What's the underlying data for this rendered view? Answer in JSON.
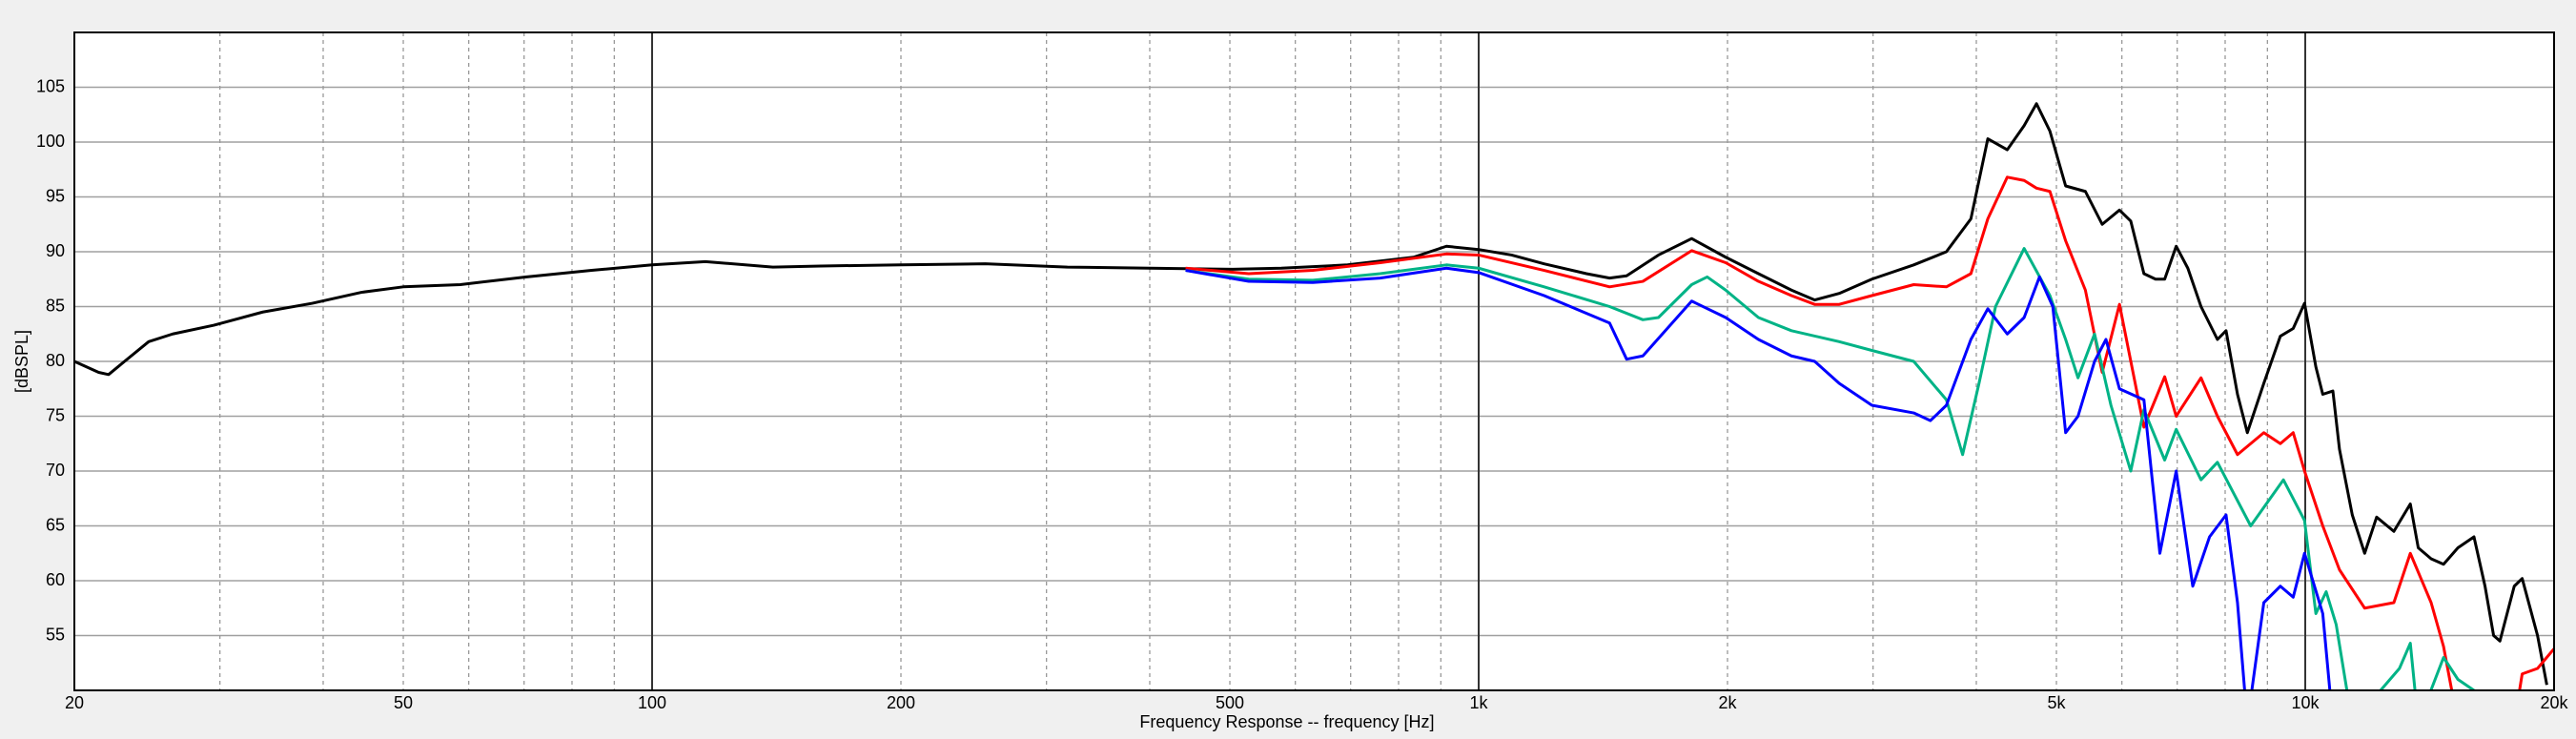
{
  "chart_data": {
    "type": "line",
    "xlabel": "Frequency Response -- frequency [Hz]",
    "ylabel": "[dBSPL]",
    "xlog": true,
    "grid": true,
    "xlim": [
      20,
      20000
    ],
    "ylim": [
      50,
      110
    ],
    "xticks": [
      20,
      50,
      100,
      200,
      500,
      {
        "value": 1000,
        "label": "1k"
      },
      {
        "value": 2000,
        "label": "2k"
      },
      {
        "value": 5000,
        "label": "5k"
      },
      {
        "value": 10000,
        "label": "10k"
      },
      {
        "value": 20000,
        "label": "20k"
      }
    ],
    "xminorticks": [
      30,
      40,
      60,
      70,
      80,
      90,
      300,
      400,
      600,
      700,
      800,
      900,
      3000,
      4000,
      6000,
      7000,
      8000,
      9000
    ],
    "yticks": [
      55,
      60,
      65,
      70,
      75,
      80,
      85,
      90,
      95,
      100,
      105
    ],
    "series": [
      {
        "color": "#000000",
        "x": [
          20,
          21.4,
          22,
          23,
          24.6,
          26.3,
          29.5,
          33.8,
          38.8,
          44.5,
          50,
          58.6,
          70.3,
          84.5,
          100,
          116,
          140,
          160,
          200,
          253,
          318,
          400,
          504,
          577,
          694,
          834,
          914,
          1000,
          1096,
          1200,
          1350,
          1440,
          1510,
          1650,
          1810,
          1990,
          2180,
          2390,
          2550,
          2730,
          2990,
          3360,
          3680,
          3940,
          4130,
          4360,
          4570,
          4730,
          4910,
          5130,
          5420,
          5680,
          5960,
          6150,
          6380,
          6590,
          6760,
          6980,
          7210,
          7480,
          7830,
          8020,
          8280,
          8510,
          8910,
          9330,
          9670,
          9980,
          10300,
          10500,
          10800,
          11000,
          11400,
          11800,
          12200,
          12800,
          13400,
          13700,
          14200,
          14700,
          15300,
          16000,
          16500,
          16900,
          17200,
          17900,
          18300,
          19100,
          19600
        ],
        "values": [
          80,
          79,
          78.8,
          80,
          81.8,
          82.5,
          83.3,
          84.5,
          85.3,
          86.3,
          86.8,
          87,
          87.7,
          88.3,
          88.8,
          89.1,
          88.6,
          88.7,
          88.8,
          88.9,
          88.6,
          88.5,
          88.4,
          88.5,
          88.8,
          89.5,
          90.5,
          90.2,
          89.7,
          88.9,
          88,
          87.6,
          87.8,
          89.7,
          91.2,
          89.5,
          88,
          86.5,
          85.6,
          86.2,
          87.5,
          88.8,
          90,
          93,
          100.3,
          99.3,
          101.5,
          103.5,
          101,
          96,
          95.5,
          92.5,
          93.8,
          92.8,
          88,
          87.5,
          87.5,
          90.5,
          88.5,
          85,
          82,
          82.8,
          77,
          73.5,
          78,
          82.3,
          83,
          85.3,
          79.5,
          77,
          77.3,
          72,
          66,
          62.5,
          65.8,
          64.5,
          67,
          63,
          62,
          61.5,
          63,
          64,
          59.5,
          55,
          54.5,
          59.5,
          60.2,
          55,
          50.5
        ]
      },
      {
        "color": "#ff0000",
        "x": [
          442,
          527,
          630,
          760,
          914,
          1000,
          1200,
          1440,
          1580,
          1810,
          1990,
          2180,
          2390,
          2550,
          2730,
          2990,
          3360,
          3680,
          3940,
          4130,
          4360,
          4570,
          4730,
          4910,
          5130,
          5420,
          5680,
          5960,
          6380,
          6760,
          6980,
          7480,
          7830,
          8280,
          8910,
          9330,
          9670,
          9980,
          10500,
          11000,
          11800,
          12800,
          13400,
          14200,
          14700,
          15300,
          17900,
          18300,
          19100,
          20000
        ],
        "values": [
          88.5,
          88,
          88.3,
          89,
          89.8,
          89.7,
          88.3,
          86.8,
          87.3,
          90.1,
          89,
          87.3,
          86,
          85.2,
          85.2,
          86,
          87,
          86.8,
          88,
          93,
          96.8,
          96.5,
          95.8,
          95.5,
          91,
          86.5,
          79,
          85.2,
          74,
          78.6,
          75,
          78.5,
          75,
          71.5,
          73.5,
          72.5,
          73.5,
          70,
          65,
          61,
          57.5,
          58,
          62.5,
          58,
          54,
          47,
          47,
          51.5,
          52,
          53.8
        ]
      },
      {
        "color": "#00b386",
        "x": [
          442,
          527,
          630,
          760,
          914,
          1000,
          1200,
          1440,
          1580,
          1650,
          1810,
          1890,
          1990,
          2180,
          2390,
          2730,
          2990,
          3360,
          3680,
          3850,
          4030,
          4220,
          4570,
          4910,
          5130,
          5310,
          5560,
          5820,
          6150,
          6380,
          6760,
          6980,
          7480,
          7830,
          8590,
          9410,
          9980,
          10300,
          10600,
          10900,
          11400,
          13000,
          13400,
          13700,
          14700,
          15300,
          16000,
          17600
        ],
        "values": [
          88.3,
          87.5,
          87.4,
          88,
          88.8,
          88.5,
          86.8,
          85,
          83.8,
          84,
          87,
          87.7,
          86.5,
          84,
          82.8,
          81.8,
          81,
          80,
          76.5,
          71.5,
          78,
          85,
          90.3,
          86,
          82,
          78.5,
          82.5,
          76,
          70,
          75.6,
          71,
          73.8,
          69.2,
          70.8,
          65,
          69.2,
          65.5,
          57,
          59,
          56,
          47,
          52,
          54.3,
          47,
          53,
          51,
          50,
          49
        ]
      },
      {
        "color": "#0000ff",
        "x": [
          442,
          527,
          630,
          760,
          914,
          1000,
          1200,
          1440,
          1510,
          1580,
          1810,
          1990,
          2180,
          2390,
          2550,
          2730,
          2990,
          3360,
          3520,
          3680,
          3940,
          4130,
          4360,
          4570,
          4770,
          4950,
          5130,
          5310,
          5560,
          5740,
          5960,
          6380,
          6670,
          6980,
          7310,
          7660,
          8020,
          8280,
          8510,
          8910,
          9330,
          9670,
          9980,
          10500,
          10800
        ],
        "values": [
          88.3,
          87.3,
          87.2,
          87.6,
          88.5,
          88.1,
          86,
          83.5,
          80.2,
          80.5,
          85.5,
          84,
          82,
          80.5,
          80,
          78,
          76,
          75.3,
          74.6,
          76,
          82,
          84.8,
          82.5,
          84,
          87.7,
          85,
          73.5,
          75,
          80,
          82,
          77.5,
          76.5,
          62.5,
          70,
          59.5,
          64,
          66,
          58,
          47,
          58,
          59.5,
          58.5,
          62.5,
          57,
          47
        ]
      }
    ]
  }
}
